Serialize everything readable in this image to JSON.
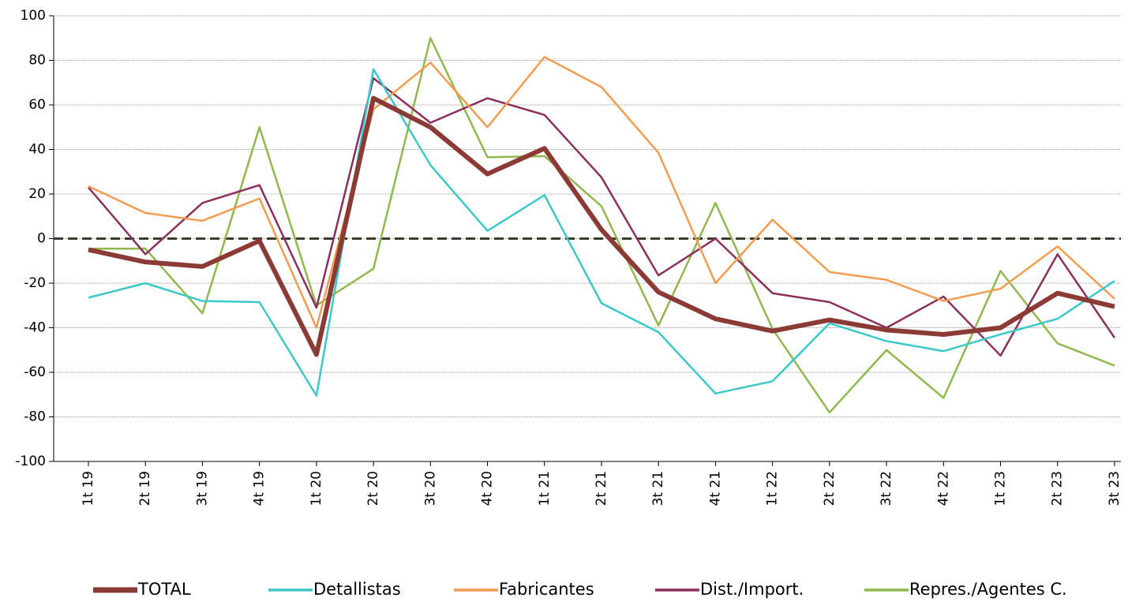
{
  "chart_data": {
    "type": "line",
    "categories": [
      "1t 19",
      "2t 19",
      "3t 19",
      "4t 19",
      "1t 20",
      "2t 20",
      "3t 20",
      "4t 20",
      "1t 21",
      "2t 21",
      "3t 21",
      "4t 21",
      "1t 22",
      "2t 22",
      "3t 22",
      "4t 22",
      "1t 23",
      "2t 23",
      "3t 23"
    ],
    "series": [
      {
        "name": "TOTAL",
        "color": "#8b3a35",
        "width": 6,
        "values": [
          -5,
          -10.5,
          -12.5,
          -1,
          -52,
          63,
          50,
          29,
          40.5,
          4,
          -24,
          -36,
          -41.5,
          -36.5,
          -41,
          -43,
          -40,
          -24.5,
          -30.5
        ]
      },
      {
        "name": "Detallistas",
        "color": "#3cc8c8",
        "width": 2.5,
        "values": [
          -26.5,
          -20,
          -28,
          -28.5,
          -70.5,
          76,
          33,
          3.5,
          19.5,
          -29,
          -42,
          -69.5,
          -64,
          -38,
          -46,
          -50.5,
          -43,
          -36,
          -19
        ]
      },
      {
        "name": "Fabricantes",
        "color": "#f29c50",
        "width": 2.5,
        "values": [
          23.5,
          11.5,
          8,
          18,
          -40,
          58,
          79,
          50,
          81.5,
          68,
          38.5,
          -20,
          8.5,
          -15,
          -18.5,
          -28,
          -22.5,
          -3.5,
          -27
        ]
      },
      {
        "name": "Dist./Import.",
        "color": "#8b2f5c",
        "width": 2.5,
        "values": [
          23,
          -7,
          16,
          24,
          -31,
          72,
          52,
          63,
          55.5,
          27.5,
          -16.5,
          0,
          -24.5,
          -28.5,
          -40,
          -26,
          -52.5,
          -7,
          -44.5
        ]
      },
      {
        "name": "Repres./Agentes C.",
        "color": "#8fb84f",
        "width": 2.5,
        "values": [
          -4.5,
          -4.5,
          -33.5,
          50,
          -30,
          -13.5,
          90,
          36.5,
          37,
          14.5,
          -39,
          16,
          -40.5,
          -78,
          -50,
          -71.5,
          -14.5,
          -47,
          -57
        ]
      }
    ],
    "ylim": [
      -100,
      100
    ],
    "yticks": [
      -100,
      -80,
      -60,
      -40,
      -20,
      0,
      20,
      40,
      60,
      80,
      100
    ],
    "grid": true,
    "zero_line": true,
    "legend": "bottom"
  }
}
